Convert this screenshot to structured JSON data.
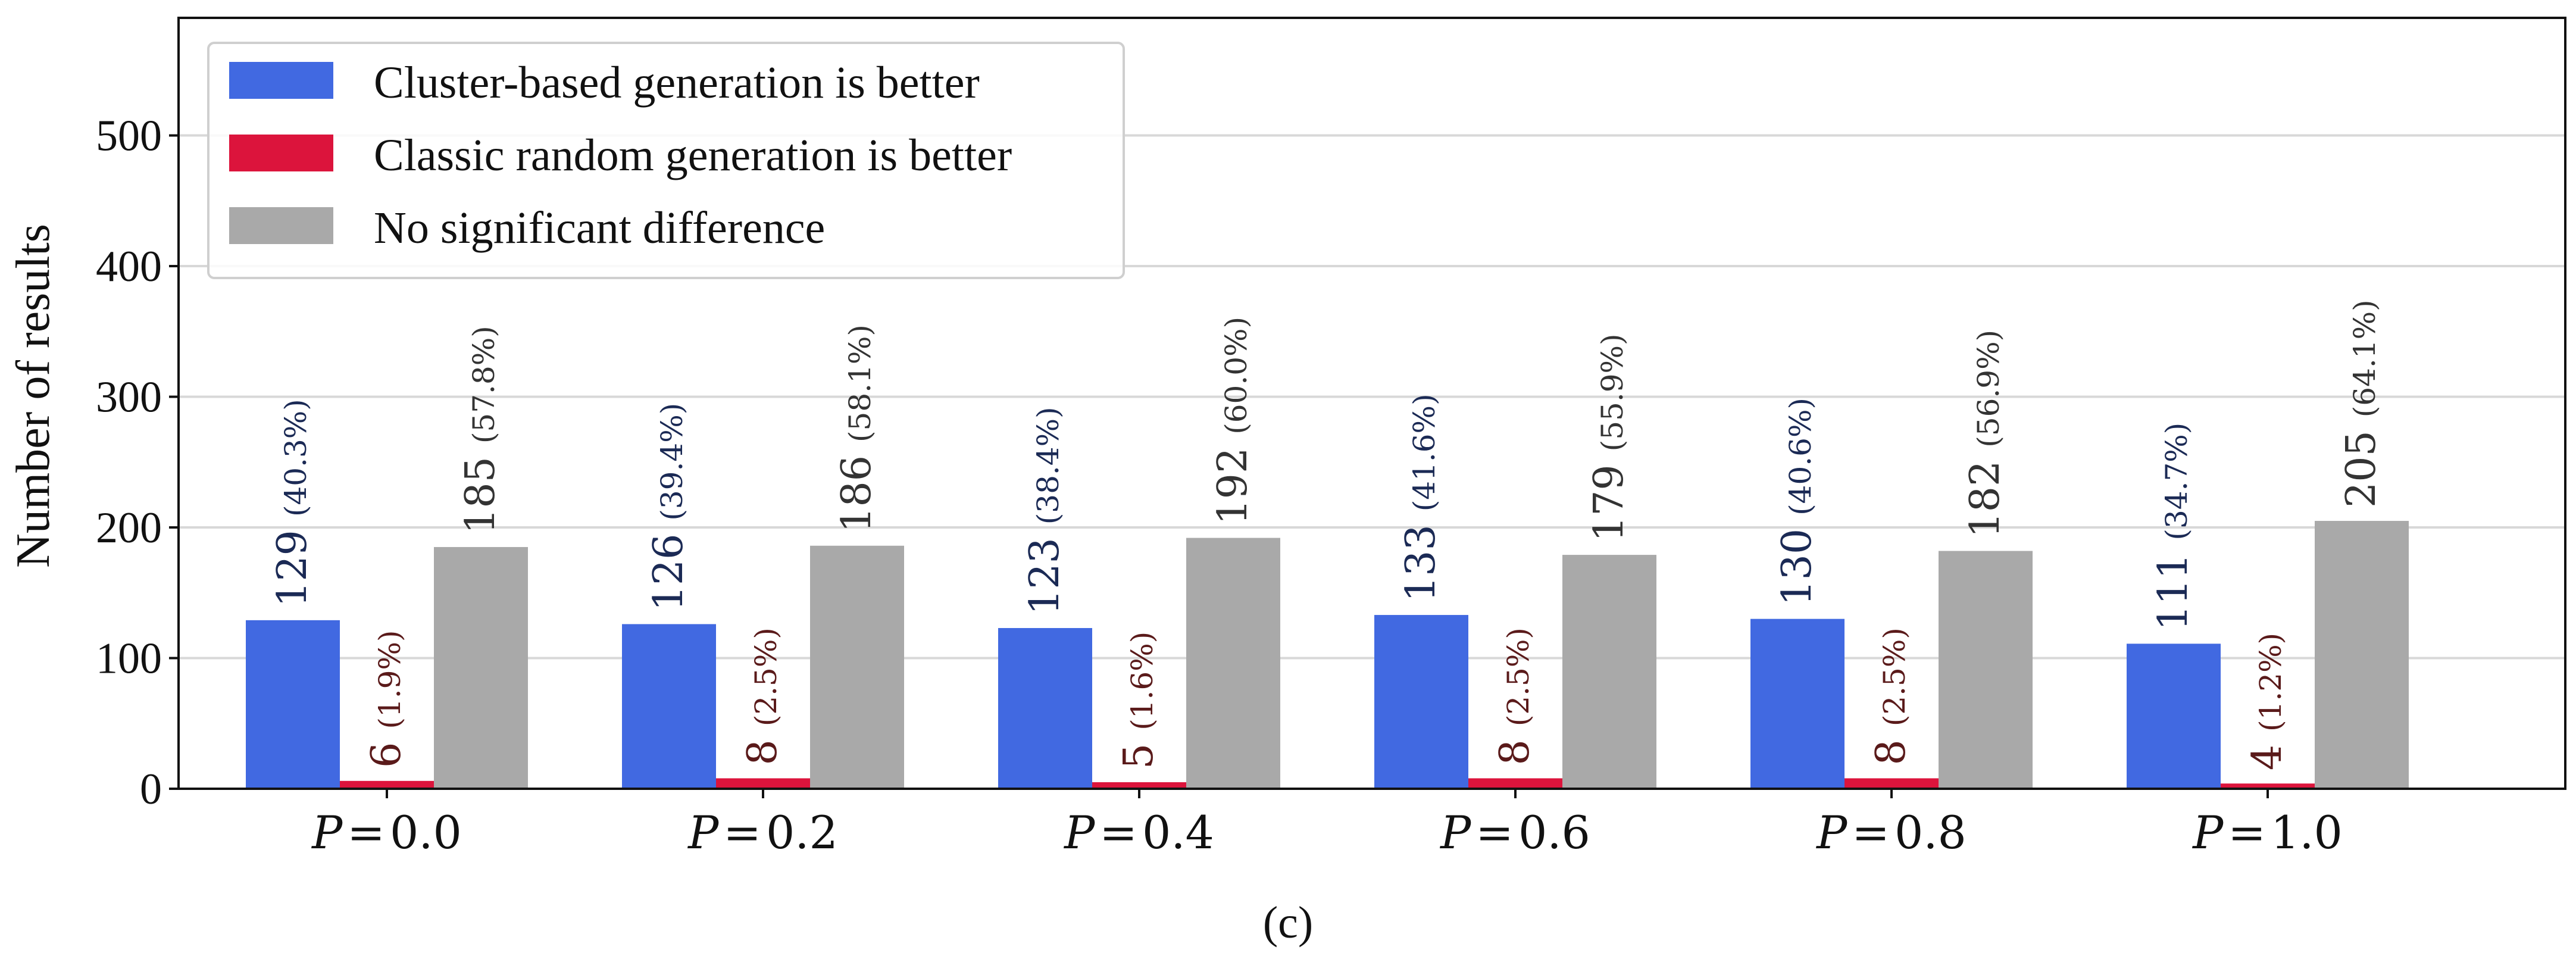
{
  "chart_data": {
    "type": "bar",
    "ylabel": "Number of results",
    "xlabel": "",
    "ylim": [
      0,
      590
    ],
    "yticks": [
      0,
      100,
      200,
      300,
      400,
      500
    ],
    "grid": true,
    "legend_position": "top-left",
    "caption": "(c)",
    "categories": [
      {
        "var": "P",
        "eq": "=",
        "num": "0.0"
      },
      {
        "var": "P",
        "eq": "=",
        "num": "0.2"
      },
      {
        "var": "P",
        "eq": "=",
        "num": "0.4"
      },
      {
        "var": "P",
        "eq": "=",
        "num": "0.6"
      },
      {
        "var": "P",
        "eq": "=",
        "num": "0.8"
      },
      {
        "var": "P",
        "eq": "=",
        "num": "1.0"
      }
    ],
    "series": [
      {
        "name": "Cluster-based generation is better",
        "color": "#4169e1",
        "label_color": "#1b2a55",
        "values": [
          129,
          126,
          123,
          133,
          130,
          111
        ],
        "percents": [
          "(40.3%)",
          "(39.4%)",
          "(38.4%)",
          "(41.6%)",
          "(40.6%)",
          "(34.7%)"
        ]
      },
      {
        "name": "Classic random generation is better",
        "color": "#dc143c",
        "label_color": "#5a1a1a",
        "values": [
          6,
          8,
          5,
          8,
          8,
          4
        ],
        "percents": [
          "(1.9%)",
          "(2.5%)",
          "(1.6%)",
          "(2.5%)",
          "(2.5%)",
          "(1.2%)"
        ]
      },
      {
        "name": "No significant difference",
        "color": "#a9a9a9",
        "label_color": "#333333",
        "values": [
          185,
          186,
          192,
          179,
          182,
          205
        ],
        "percents": [
          "(57.8%)",
          "(58.1%)",
          "(60.0%)",
          "(55.9%)",
          "(56.9%)",
          "(64.1%)"
        ]
      }
    ]
  }
}
